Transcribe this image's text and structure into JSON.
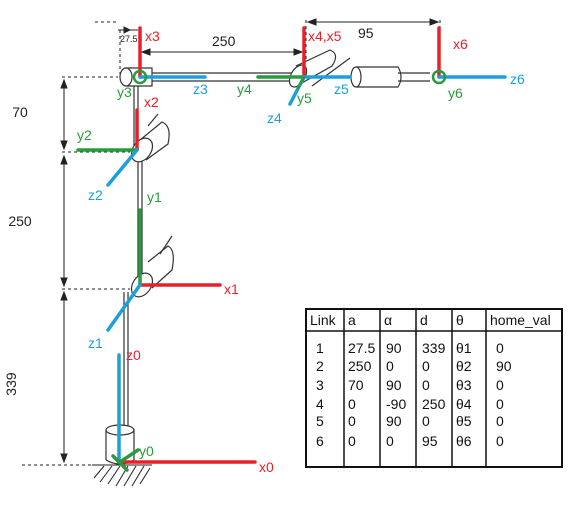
{
  "colors": {
    "x_axis": "#e8202a",
    "y_axis": "#2a9b3c",
    "z_axis": "#1aa0dd",
    "ink": "#222222"
  },
  "frames": {
    "x0": "x0",
    "y0": "y0",
    "z0": "z0",
    "x1": "x1",
    "y1": "y1",
    "z1": "z1",
    "x2": "x2",
    "y2": "y2",
    "z2": "z2",
    "x3": "x3",
    "y3": "y3",
    "z3": "z3",
    "x45": "x4,x5",
    "y4": "y4",
    "z4": "z4",
    "y5": "y5",
    "z5": "z5",
    "x6": "x6",
    "y6": "y6",
    "z6": "z6"
  },
  "dimensions": {
    "d339": "339",
    "d250v": "250",
    "d70": "70",
    "d27_5": "27.5",
    "d250h": "250",
    "d95": "95"
  },
  "table": {
    "headers": [
      "Link",
      "a",
      "α",
      "d",
      "θ",
      "home_val"
    ],
    "rows": [
      [
        "1",
        "27.5",
        "90",
        "339",
        "θ1",
        "0"
      ],
      [
        "2",
        "250",
        "0",
        "0",
        "θ2",
        "90"
      ],
      [
        "3",
        "70",
        "90",
        "0",
        "θ3",
        "0"
      ],
      [
        "4",
        "0",
        "-90",
        "250",
        "θ4",
        "0"
      ],
      [
        "5",
        "0",
        "90",
        "0",
        "θ5",
        "0"
      ],
      [
        "6",
        "0",
        "0",
        "95",
        "θ6",
        "0"
      ]
    ]
  }
}
